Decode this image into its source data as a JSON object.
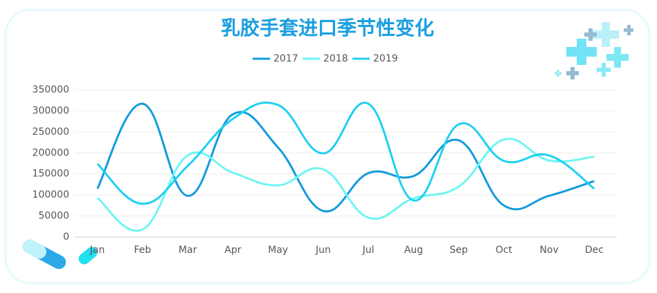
{
  "chart_data": {
    "type": "line",
    "title": "乳胶手套进口季节性变化",
    "categories": [
      "Jan",
      "Feb",
      "Mar",
      "Apr",
      "May",
      "Jun",
      "Jul",
      "Aug",
      "Sep",
      "Oct",
      "Nov",
      "Dec"
    ],
    "series": [
      {
        "name": "2017",
        "color": "#139bdc",
        "values": [
          115000,
          317000,
          98000,
          292000,
          213000,
          62000,
          152000,
          145000,
          230000,
          75000,
          98000,
          133000
        ]
      },
      {
        "name": "2018",
        "color": "#6ff5f3",
        "values": [
          93000,
          18000,
          194000,
          153000,
          123000,
          161000,
          46000,
          92000,
          120000,
          232000,
          182000,
          191000
        ]
      },
      {
        "name": "2019",
        "color": "#1fd0f0",
        "values": [
          174000,
          79000,
          169000,
          281000,
          314000,
          199000,
          317000,
          87000,
          268000,
          181000,
          194000,
          115000
        ]
      }
    ],
    "ylim": [
      0,
      350000
    ],
    "yticks": [
      0,
      50000,
      100000,
      150000,
      200000,
      250000,
      300000,
      350000
    ],
    "grid": true,
    "smooth": true
  }
}
